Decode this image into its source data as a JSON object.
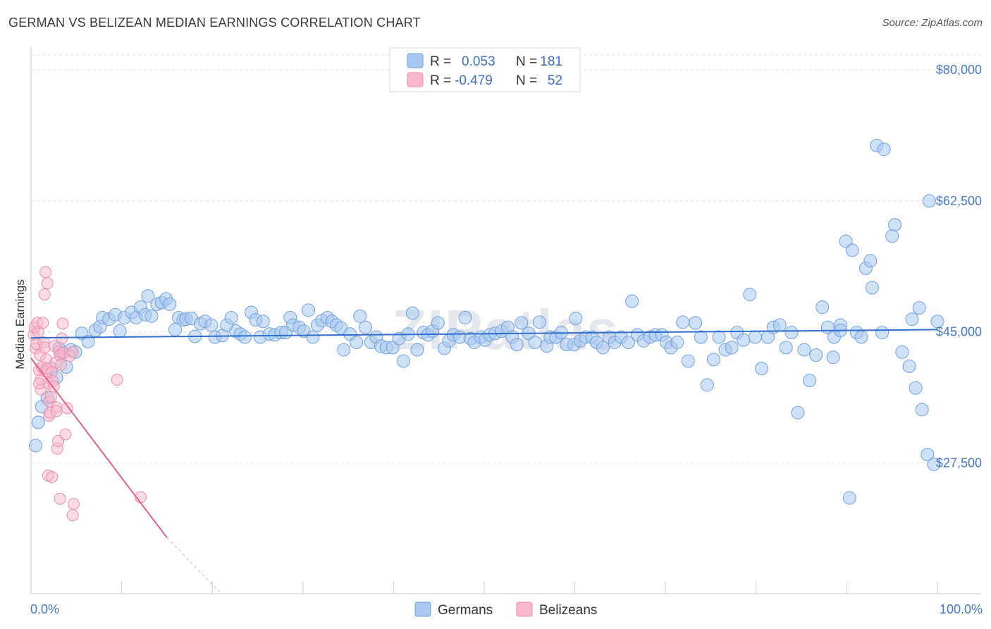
{
  "title": "GERMAN VS BELIZEAN MEDIAN EARNINGS CORRELATION CHART",
  "source": "Source: ZipAtlas.com",
  "watermark": "ZIPatlas",
  "colors": {
    "blue_fill": "#a8c8f0",
    "blue_stroke": "#6f9fdc",
    "blue_line": "#2f6fcf",
    "pink_fill": "#f8b8cc",
    "pink_stroke": "#ec8cab",
    "pink_line": "#e0608c",
    "grid": "#d8dde6",
    "label": "#4a78c2"
  },
  "legend": {
    "rows": [
      {
        "r_label": "R =",
        "r_value": "0.053",
        "n_label": "N =",
        "n_value": "181"
      },
      {
        "r_label": "R =",
        "r_value": "-0.479",
        "n_label": "N =",
        "n_value": "52"
      }
    ]
  },
  "bottom_legend": [
    "Germans",
    "Belizeans"
  ],
  "chart_data": {
    "type": "scatter",
    "xlabel": "",
    "ylabel": "Median Earnings",
    "xlim": [
      0,
      100
    ],
    "ylim": [
      10000,
      82000
    ],
    "x_tick_labels": [
      "0.0%",
      "100.0%"
    ],
    "y_ticks": [
      27500,
      45000,
      62500,
      80000
    ],
    "y_tick_labels": [
      "$27,500",
      "$45,000",
      "$62,500",
      "$80,000"
    ],
    "series": [
      {
        "name": "Germans",
        "r": 0.053,
        "n": 181,
        "trend": {
          "x0": 0,
          "y0": 44200,
          "x1": 100,
          "y1": 45300
        },
        "points": [
          [
            0.5,
            29800
          ],
          [
            0.8,
            32900
          ],
          [
            1.2,
            35000
          ],
          [
            1.8,
            36200
          ],
          [
            2.3,
            40100
          ],
          [
            2.8,
            38900
          ],
          [
            3.1,
            42800
          ],
          [
            3.5,
            42200
          ],
          [
            3.9,
            40300
          ],
          [
            4.4,
            42600
          ],
          [
            4.9,
            42300
          ],
          [
            5.6,
            44800
          ],
          [
            6.3,
            43700
          ],
          [
            7.1,
            45200
          ],
          [
            7.6,
            45700
          ],
          [
            7.9,
            46900
          ],
          [
            8.6,
            46700
          ],
          [
            9.3,
            47300
          ],
          [
            9.8,
            45100
          ],
          [
            10.3,
            46900
          ],
          [
            11.1,
            47600
          ],
          [
            11.6,
            46900
          ],
          [
            12.1,
            48300
          ],
          [
            12.6,
            47300
          ],
          [
            12.9,
            49800
          ],
          [
            13.3,
            47100
          ],
          [
            13.9,
            48700
          ],
          [
            14.4,
            48900
          ],
          [
            14.9,
            49400
          ],
          [
            15.3,
            48700
          ],
          [
            15.9,
            45300
          ],
          [
            16.3,
            46900
          ],
          [
            16.8,
            46600
          ],
          [
            17.1,
            46700
          ],
          [
            17.7,
            46800
          ],
          [
            18.1,
            44400
          ],
          [
            18.7,
            46100
          ],
          [
            19.2,
            46400
          ],
          [
            19.9,
            45900
          ],
          [
            20.3,
            44300
          ],
          [
            21.1,
            44500
          ],
          [
            21.6,
            45900
          ],
          [
            22.1,
            46900
          ],
          [
            22.6,
            45100
          ],
          [
            23.1,
            44700
          ],
          [
            23.6,
            44300
          ],
          [
            24.3,
            47600
          ],
          [
            24.8,
            46600
          ],
          [
            25.3,
            44300
          ],
          [
            25.6,
            46400
          ],
          [
            26.3,
            44700
          ],
          [
            26.9,
            44600
          ],
          [
            27.6,
            44900
          ],
          [
            28.1,
            44900
          ],
          [
            28.6,
            46900
          ],
          [
            28.9,
            45900
          ],
          [
            29.6,
            45600
          ],
          [
            30.1,
            45100
          ],
          [
            30.6,
            47900
          ],
          [
            31.1,
            44300
          ],
          [
            31.6,
            45900
          ],
          [
            32.1,
            46500
          ],
          [
            32.7,
            46900
          ],
          [
            33.2,
            46400
          ],
          [
            33.7,
            45900
          ],
          [
            34.2,
            45500
          ],
          [
            34.5,
            42600
          ],
          [
            35.2,
            44700
          ],
          [
            35.9,
            43600
          ],
          [
            36.3,
            47100
          ],
          [
            36.9,
            45600
          ],
          [
            37.5,
            43600
          ],
          [
            38.1,
            44300
          ],
          [
            38.6,
            43100
          ],
          [
            39.2,
            42900
          ],
          [
            39.9,
            42900
          ],
          [
            40.6,
            44100
          ],
          [
            41.1,
            41100
          ],
          [
            41.6,
            44700
          ],
          [
            42.1,
            47500
          ],
          [
            42.6,
            42600
          ],
          [
            43.3,
            44900
          ],
          [
            43.8,
            44600
          ],
          [
            44.3,
            45100
          ],
          [
            44.9,
            46200
          ],
          [
            45.6,
            42800
          ],
          [
            46.1,
            43800
          ],
          [
            46.6,
            44600
          ],
          [
            47.3,
            44300
          ],
          [
            47.9,
            46900
          ],
          [
            48.5,
            44100
          ],
          [
            48.9,
            43600
          ],
          [
            49.6,
            44300
          ],
          [
            50.1,
            43900
          ],
          [
            50.6,
            44600
          ],
          [
            51.2,
            44800
          ],
          [
            51.9,
            45100
          ],
          [
            52.6,
            45600
          ],
          [
            53.1,
            44300
          ],
          [
            53.6,
            43300
          ],
          [
            54.1,
            46200
          ],
          [
            54.9,
            44800
          ],
          [
            55.6,
            43600
          ],
          [
            56.1,
            46300
          ],
          [
            56.9,
            43100
          ],
          [
            57.3,
            44300
          ],
          [
            57.9,
            44300
          ],
          [
            58.5,
            44900
          ],
          [
            59.1,
            43300
          ],
          [
            59.9,
            43300
          ],
          [
            60.1,
            46800
          ],
          [
            60.6,
            43800
          ],
          [
            61.2,
            44300
          ],
          [
            61.9,
            44300
          ],
          [
            62.4,
            43600
          ],
          [
            63.1,
            42900
          ],
          [
            63.8,
            44300
          ],
          [
            64.4,
            43600
          ],
          [
            65.1,
            44300
          ],
          [
            65.9,
            43600
          ],
          [
            66.3,
            49100
          ],
          [
            66.9,
            44600
          ],
          [
            67.6,
            43800
          ],
          [
            68.3,
            44300
          ],
          [
            68.9,
            44600
          ],
          [
            69.6,
            44600
          ],
          [
            70.1,
            43600
          ],
          [
            70.6,
            42900
          ],
          [
            71.3,
            43600
          ],
          [
            71.9,
            46300
          ],
          [
            72.5,
            41100
          ],
          [
            73.3,
            46200
          ],
          [
            73.9,
            44300
          ],
          [
            74.6,
            37900
          ],
          [
            75.3,
            41300
          ],
          [
            75.9,
            44300
          ],
          [
            76.6,
            42600
          ],
          [
            77.3,
            42900
          ],
          [
            77.9,
            44900
          ],
          [
            78.6,
            43900
          ],
          [
            79.3,
            50000
          ],
          [
            79.9,
            44300
          ],
          [
            80.6,
            40100
          ],
          [
            81.3,
            44300
          ],
          [
            81.9,
            45600
          ],
          [
            82.6,
            45900
          ],
          [
            83.3,
            42900
          ],
          [
            83.9,
            44900
          ],
          [
            84.6,
            34200
          ],
          [
            85.3,
            42600
          ],
          [
            85.9,
            38500
          ],
          [
            86.6,
            41900
          ],
          [
            87.3,
            48300
          ],
          [
            87.9,
            45600
          ],
          [
            88.6,
            44300
          ],
          [
            89.3,
            45900
          ],
          [
            89.9,
            57100
          ],
          [
            90.6,
            55900
          ],
          [
            91.1,
            44900
          ],
          [
            91.6,
            44300
          ],
          [
            92.1,
            53500
          ],
          [
            92.6,
            54500
          ],
          [
            93.3,
            69900
          ],
          [
            94.1,
            69400
          ],
          [
            95.3,
            59300
          ],
          [
            96.1,
            42300
          ],
          [
            96.9,
            40400
          ],
          [
            97.6,
            37500
          ],
          [
            98.3,
            34600
          ],
          [
            98.9,
            28600
          ],
          [
            99.6,
            27300
          ],
          [
            100.0,
            46400
          ],
          [
            95.0,
            57800
          ],
          [
            93.9,
            44900
          ],
          [
            90.3,
            22800
          ],
          [
            89.3,
            45200
          ],
          [
            88.5,
            41600
          ],
          [
            92.8,
            50900
          ],
          [
            97.2,
            46700
          ],
          [
            99.1,
            62500
          ],
          [
            98.0,
            48200
          ]
        ]
      },
      {
        "name": "Belizeans",
        "r": -0.479,
        "n": 52,
        "trend": {
          "x0": 0,
          "y0": 41500,
          "x1": 15,
          "y1": 17500
        },
        "trend_dashed": {
          "x0": 15,
          "y0": 17500,
          "x1": 21,
          "y1": 10000
        },
        "points": [
          [
            0.3,
            44600
          ],
          [
            0.4,
            45600
          ],
          [
            0.5,
            42800
          ],
          [
            0.6,
            43400
          ],
          [
            0.7,
            46200
          ],
          [
            0.8,
            45000
          ],
          [
            0.9,
            39900
          ],
          [
            1.0,
            41900
          ],
          [
            1.1,
            38600
          ],
          [
            1.1,
            37300
          ],
          [
            1.2,
            40300
          ],
          [
            1.3,
            46200
          ],
          [
            1.4,
            43600
          ],
          [
            1.5,
            42900
          ],
          [
            1.6,
            39700
          ],
          [
            1.7,
            41300
          ],
          [
            1.8,
            40100
          ],
          [
            1.9,
            38100
          ],
          [
            2.0,
            35700
          ],
          [
            2.0,
            33800
          ],
          [
            2.1,
            34200
          ],
          [
            2.2,
            36300
          ],
          [
            2.3,
            39600
          ],
          [
            2.4,
            38400
          ],
          [
            2.5,
            37700
          ],
          [
            2.6,
            43100
          ],
          [
            2.7,
            40900
          ],
          [
            2.8,
            34900
          ],
          [
            2.9,
            29400
          ],
          [
            3.0,
            30400
          ],
          [
            3.1,
            42400
          ],
          [
            3.2,
            41900
          ],
          [
            3.3,
            40600
          ],
          [
            3.4,
            44100
          ],
          [
            3.5,
            46100
          ],
          [
            3.6,
            42200
          ],
          [
            3.8,
            31300
          ],
          [
            4.0,
            34800
          ],
          [
            4.3,
            41800
          ],
          [
            4.6,
            42300
          ],
          [
            1.6,
            53000
          ],
          [
            1.5,
            50000
          ],
          [
            1.9,
            25800
          ],
          [
            2.3,
            25600
          ],
          [
            3.2,
            22700
          ],
          [
            4.6,
            20500
          ],
          [
            4.7,
            22000
          ],
          [
            9.5,
            38600
          ],
          [
            12.1,
            22900
          ],
          [
            1.8,
            51500
          ],
          [
            2.8,
            34400
          ],
          [
            0.9,
            38100
          ]
        ]
      }
    ]
  }
}
